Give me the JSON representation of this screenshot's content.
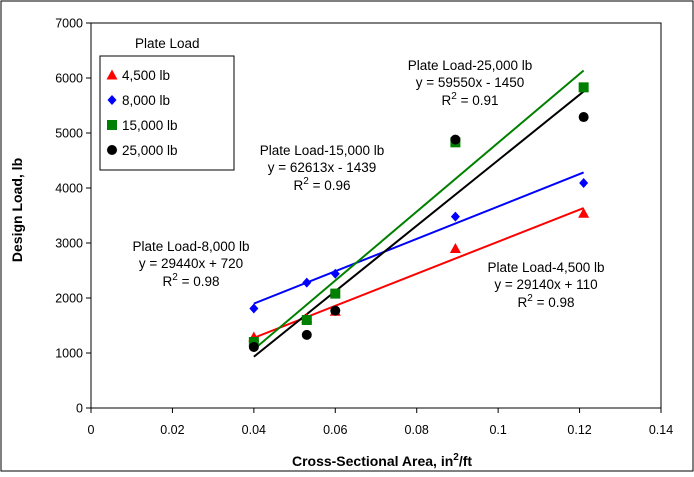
{
  "chart_data": {
    "type": "scatter",
    "title": "",
    "xlabel": "Cross-Sectional Area, in",
    "xlabel_sup": "2",
    "xlabel_suffix": "/ft",
    "ylabel": "Design Load, lb",
    "xlim": [
      0,
      0.14
    ],
    "ylim": [
      0,
      7000
    ],
    "x_ticks": [
      0,
      0.02,
      0.04,
      0.06,
      0.08,
      0.1,
      0.12,
      0.14
    ],
    "x_tick_labels": [
      "0",
      "0.02",
      "0.04",
      "0.06",
      "0.08",
      "0.1",
      "0.12",
      "0.14"
    ],
    "y_ticks": [
      0,
      1000,
      2000,
      3000,
      4000,
      5000,
      6000,
      7000
    ],
    "y_tick_labels": [
      "0",
      "1000",
      "2000",
      "3000",
      "4000",
      "5000",
      "6000",
      "7000"
    ],
    "grid": false,
    "legend_title": "Plate Load",
    "legend_position": "top-left",
    "series": [
      {
        "name": "4,500 lb",
        "color": "#ff0000",
        "marker": "triangle",
        "x": [
          0.04,
          0.053,
          0.06,
          0.0895,
          0.121
        ],
        "y": [
          1290,
          1630,
          1760,
          2900,
          3540
        ],
        "fit": {
          "slope": 29140,
          "intercept": 110,
          "x_range": [
            0.04,
            0.121
          ]
        }
      },
      {
        "name": "8,000 lb",
        "color": "#0000ff",
        "marker": "diamond",
        "x": [
          0.04,
          0.053,
          0.06,
          0.0895,
          0.121
        ],
        "y": [
          1810,
          2280,
          2440,
          3480,
          4090
        ],
        "fit": {
          "slope": 29440,
          "intercept": 720,
          "x_range": [
            0.04,
            0.121
          ]
        }
      },
      {
        "name": "15,000 lb",
        "color": "#008000",
        "marker": "square",
        "x": [
          0.04,
          0.053,
          0.06,
          0.0895,
          0.121
        ],
        "y": [
          1200,
          1600,
          2080,
          4830,
          5830
        ],
        "fit": {
          "slope": 62613,
          "intercept": -1439,
          "x_range": [
            0.04,
            0.121
          ]
        }
      },
      {
        "name": "25,000 lb",
        "color": "#000000",
        "marker": "circle",
        "x": [
          0.04,
          0.053,
          0.06,
          0.0895,
          0.121
        ],
        "y": [
          1110,
          1330,
          1770,
          4880,
          5290
        ],
        "fit": {
          "slope": 59550,
          "intercept": -1450,
          "x_range": [
            0.04,
            0.121
          ]
        }
      }
    ],
    "annotations": [
      {
        "name": "annotation-25000",
        "lines": [
          "Plate Load-25,000 lb",
          "y = 59550x - 1450"
        ],
        "r2_label": "R",
        "r2_sup": "2",
        "r2_value": " = 0.91"
      },
      {
        "name": "annotation-15000",
        "lines": [
          "Plate Load-15,000 lb",
          "y = 62613x - 1439"
        ],
        "r2_label": "R",
        "r2_sup": "2",
        "r2_value": " = 0.96"
      },
      {
        "name": "annotation-8000",
        "lines": [
          "Plate Load-8,000 lb",
          "y = 29440x + 720"
        ],
        "r2_label": "R",
        "r2_sup": "2",
        "r2_value": " = 0.98"
      },
      {
        "name": "annotation-4500",
        "lines": [
          "Plate Load-4,500 lb",
          "y = 29140x + 110"
        ],
        "r2_label": "R",
        "r2_sup": "2",
        "r2_value": " = 0.98"
      }
    ]
  }
}
